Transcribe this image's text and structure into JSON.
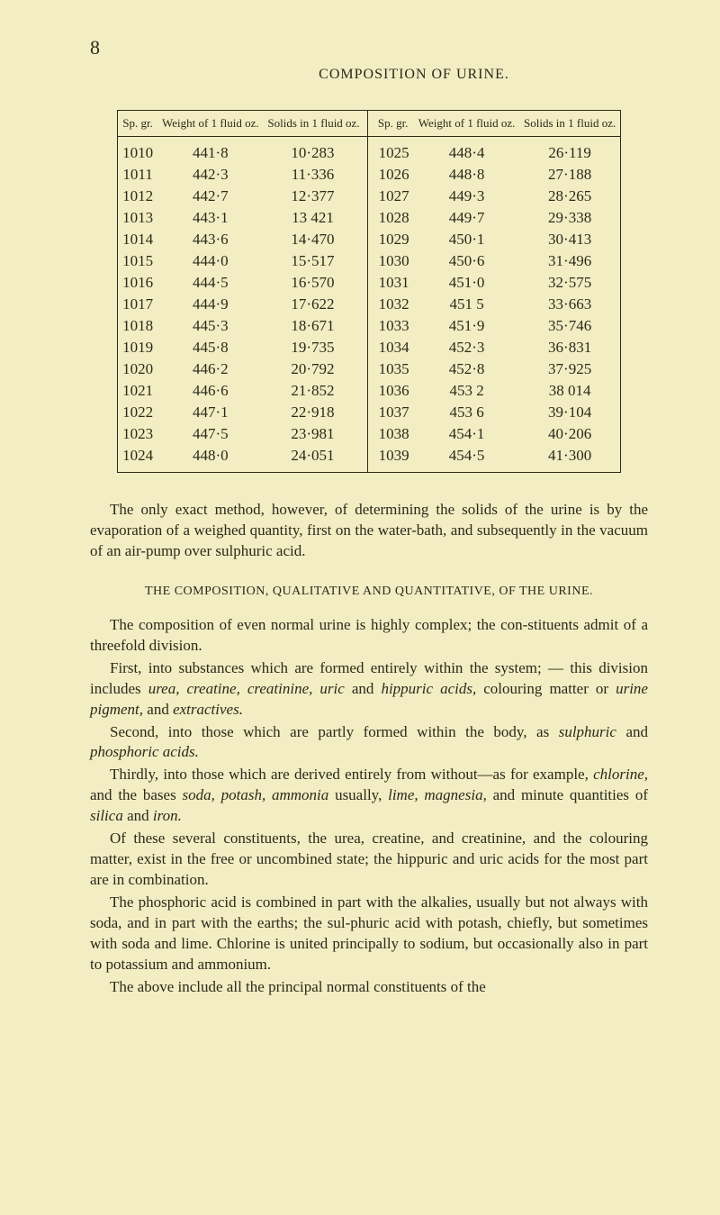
{
  "page_number": "8",
  "header": "COMPOSITION OF URINE.",
  "table": {
    "columns": [
      "Sp. gr.",
      "Weight of 1 fluid oz.",
      "Solids in 1 fluid oz.",
      "Sp. gr.",
      "Weight of 1 fluid oz.",
      "Solids in 1 fluid oz."
    ],
    "rows": [
      [
        "1010",
        "441·8",
        "10·283",
        "1025",
        "448·4",
        "26·119"
      ],
      [
        "1011",
        "442·3",
        "11·336",
        "1026",
        "448·8",
        "27·188"
      ],
      [
        "1012",
        "442·7",
        "12·377",
        "1027",
        "449·3",
        "28·265"
      ],
      [
        "1013",
        "443·1",
        "13 421",
        "1028",
        "449·7",
        "29·338"
      ],
      [
        "1014",
        "443·6",
        "14·470",
        "1029",
        "450·1",
        "30·413"
      ],
      [
        "1015",
        "444·0",
        "15·517",
        "1030",
        "450·6",
        "31·496"
      ],
      [
        "1016",
        "444·5",
        "16·570",
        "1031",
        "451·0",
        "32·575"
      ],
      [
        "1017",
        "444·9",
        "17·622",
        "1032",
        "451 5",
        "33·663"
      ],
      [
        "1018",
        "445·3",
        "18·671",
        "1033",
        "451·9",
        "35·746"
      ],
      [
        "1019",
        "445·8",
        "19·735",
        "1034",
        "452·3",
        "36·831"
      ],
      [
        "1020",
        "446·2",
        "20·792",
        "1035",
        "452·8",
        "37·925"
      ],
      [
        "1021",
        "446·6",
        "21·852",
        "1036",
        "453 2",
        "38 014"
      ],
      [
        "1022",
        "447·1",
        "22·918",
        "1037",
        "453 6",
        "39·104"
      ],
      [
        "1023",
        "447·5",
        "23·981",
        "1038",
        "454·1",
        "40·206"
      ],
      [
        "1024",
        "448·0",
        "24·051",
        "1039",
        "454·5",
        "41·300"
      ]
    ]
  },
  "paragraph1": "The only exact method, however, of determining the solids of the urine is by the evaporation of a weighed quantity, first on the water-bath, and subsequently in the vacuum of an air-pump over sulphuric acid.",
  "section_heading": "THE COMPOSITION, QUALITATIVE AND QUANTITATIVE, OF THE URINE.",
  "paragraph2_a": "The composition of even normal urine is highly complex; the con-stituents admit of a threefold division.",
  "paragraph3_prefix": "First, into substances which are formed entirely within the system; — this division includes ",
  "paragraph3_i1": "urea, creatine, creatinine, uric",
  "paragraph3_mid1": " and ",
  "paragraph3_i2": "hippuric acids,",
  "paragraph3_mid2": " colouring matter or ",
  "paragraph3_i3": "urine pigment,",
  "paragraph3_mid3": " and ",
  "paragraph3_i4": "extractives.",
  "paragraph4_prefix": "Second, into those which are partly formed within the body, as ",
  "paragraph4_i1": "sulphuric",
  "paragraph4_mid": " and ",
  "paragraph4_i2": "phosphoric acids.",
  "paragraph5_prefix": "Thirdly, into those which are derived entirely from without—as for example, ",
  "paragraph5_i1": "chlorine,",
  "paragraph5_mid1": " and the bases ",
  "paragraph5_i2": "soda, potash, ammonia",
  "paragraph5_mid2": " usually, ",
  "paragraph5_i3": "lime, magnesia,",
  "paragraph5_mid3": " and minute quantities of ",
  "paragraph5_i4": "silica",
  "paragraph5_mid4": " and ",
  "paragraph5_i5": "iron.",
  "paragraph6": "Of these several constituents, the urea, creatine, and creatinine, and the colouring matter, exist in the free or uncombined state; the hippuric and uric acids for the most part are in combination.",
  "paragraph7": "The phosphoric acid is combined in part with the alkalies, usually but not always with soda, and in part with the earths; the sul-phuric acid with potash, chiefly, but sometimes with soda and lime. Chlorine is united principally to sodium, but occasionally also in part to potassium and ammonium.",
  "paragraph8": "The above include all the principal normal constituents of the"
}
